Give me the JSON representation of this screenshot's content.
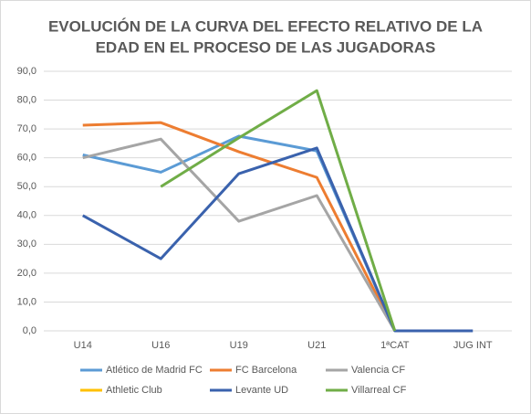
{
  "chart_data": {
    "type": "line",
    "title": [
      "EVOLUCIÓN DE LA CURVA  DEL EFECTO RELATIVO DE LA",
      "EDAD EN EL PROCESO DE LAS JUGADORAS"
    ],
    "categories": [
      "U14",
      "U16",
      "U19",
      "U21",
      "1ªCAT",
      "JUG INT"
    ],
    "series": [
      {
        "name": "Atlético de Madrid FC",
        "color": "#5b9bd5",
        "values": [
          61,
          55,
          67.5,
          62.4,
          0,
          null
        ]
      },
      {
        "name": "FC Barcelona",
        "color": "#ed7d31",
        "values": [
          71.3,
          72.2,
          62.1,
          53.2,
          0,
          null
        ]
      },
      {
        "name": "Valencia CF",
        "color": "#a5a5a5",
        "values": [
          60,
          66.5,
          38,
          46.9,
          0,
          null
        ]
      },
      {
        "name": "Athletic Club",
        "color": "#ffc000",
        "values": [
          null,
          null,
          null,
          null,
          null,
          null
        ]
      },
      {
        "name": "Levante UD",
        "color": "#3a62ad",
        "values": [
          40,
          25,
          54.5,
          63.4,
          0,
          0
        ]
      },
      {
        "name": "Villarreal CF",
        "color": "#70ad47",
        "values": [
          null,
          50,
          66.9,
          83.3,
          0,
          null
        ]
      }
    ],
    "ylim": [
      0,
      90
    ],
    "yticks": [
      {
        "value": 0,
        "label": "0,0"
      },
      {
        "value": 10,
        "label": "10,0"
      },
      {
        "value": 20,
        "label": "20,0"
      },
      {
        "value": 30,
        "label": "30,0"
      },
      {
        "value": 40,
        "label": "40,0"
      },
      {
        "value": 50,
        "label": "50,0"
      },
      {
        "value": 60,
        "label": "60,0"
      },
      {
        "value": 70,
        "label": "70,0"
      },
      {
        "value": 80,
        "label": "80,0"
      },
      {
        "value": 90,
        "label": "90,0"
      }
    ],
    "grid": true
  }
}
